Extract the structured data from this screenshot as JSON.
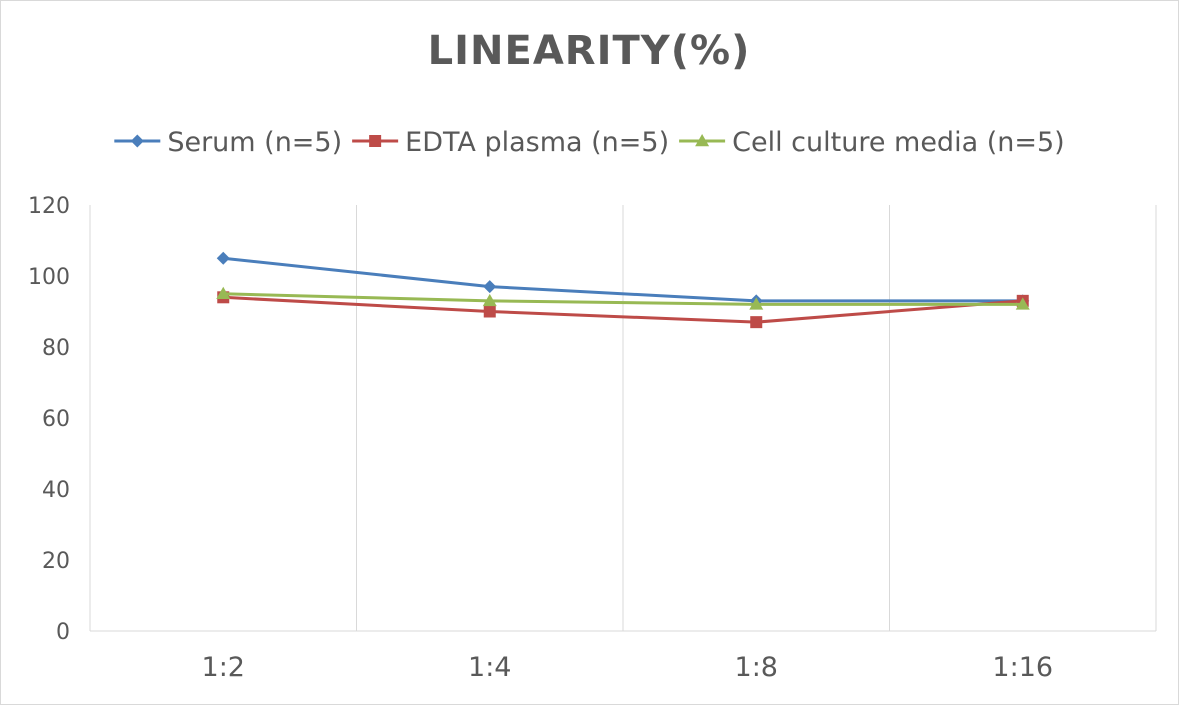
{
  "chart_data": {
    "type": "line",
    "title": "LINEARITY(%)",
    "categories": [
      "1:2",
      "1:4",
      "1:8",
      "1:16"
    ],
    "ylim": [
      0,
      120
    ],
    "yticks": [
      0,
      20,
      40,
      60,
      80,
      100,
      120
    ],
    "grid": "vertical",
    "legend": "top",
    "series": [
      {
        "name": "Serum (n=5)",
        "values": [
          105,
          97,
          93,
          93
        ],
        "color": "#4a7ebb",
        "marker": "diamond"
      },
      {
        "name": "EDTA plasma (n=5)",
        "values": [
          94,
          90,
          87,
          93
        ],
        "color": "#be4b48",
        "marker": "square"
      },
      {
        "name": "Cell culture media (n=5)",
        "values": [
          95,
          93,
          92,
          92
        ],
        "color": "#98b954",
        "marker": "triangle"
      }
    ]
  }
}
